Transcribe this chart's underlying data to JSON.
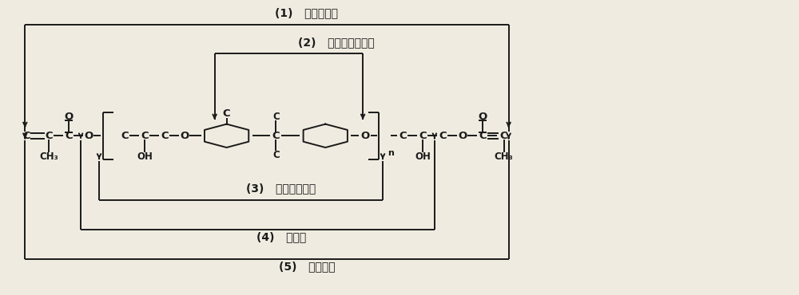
{
  "bg_color": "#f0ebe0",
  "tc": "#1a1a1a",
  "label1": "(1)   高反应活性",
  "label2": "(2)   物理性能耐热性",
  "label3": "(3)   柔韧耐冲击性",
  "label4": "(4)   洸润性",
  "label5": "(5)   耔化学性",
  "lw": 1.4,
  "my": 54,
  "figsize": [
    10.0,
    3.7
  ],
  "dpi": 100
}
